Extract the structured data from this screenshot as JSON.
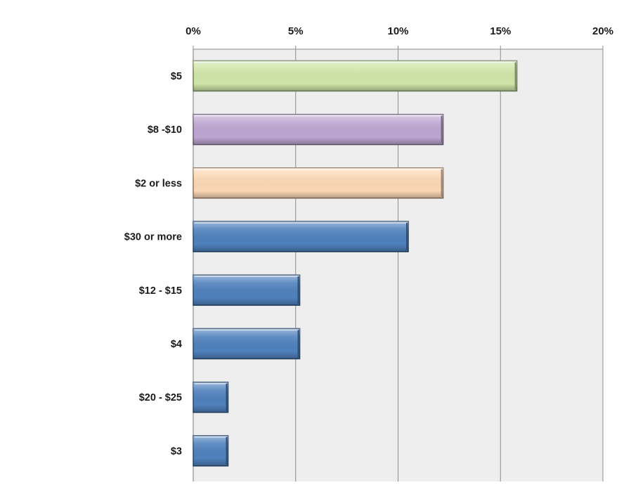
{
  "chart_data": {
    "type": "bar",
    "orientation": "horizontal",
    "title": "",
    "xlabel": "",
    "ylabel": "",
    "categories": [
      "$5",
      "$8 -$10",
      "$2 or less",
      "$30 or more",
      "$12 - $15",
      "$4",
      "$20 - $25",
      "$3"
    ],
    "values": [
      15.8,
      12.2,
      12.2,
      10.5,
      5.2,
      5.2,
      1.7,
      1.7
    ],
    "xlim": [
      0,
      20
    ],
    "x_ticks": [
      0,
      5,
      10,
      15,
      20
    ],
    "x_tick_labels": [
      "0%",
      "5%",
      "10%",
      "15%",
      "20%"
    ],
    "x_axis_position": "top",
    "grid": true,
    "legend": "none",
    "bar_colors": [
      "#d0e6a8",
      "#bea6d2",
      "#fcd8b5",
      "#4f81bd",
      "#4f81bd",
      "#4f81bd",
      "#4f81bd",
      "#4f81bd"
    ],
    "plot_background": "#eeeeee",
    "gridline_color": "#8c8c8c"
  }
}
